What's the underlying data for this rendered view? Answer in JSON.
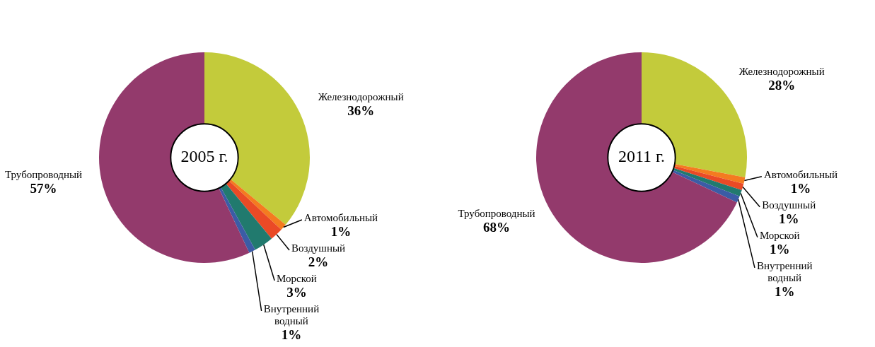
{
  "chart_data": [
    {
      "type": "donut",
      "title": "2005 г.",
      "categories": [
        "Железнодорожный",
        "Автомобильный",
        "Воздушный",
        "Морской",
        "Внутренний водный",
        "Трубопроводный"
      ],
      "values": [
        36,
        1,
        2,
        3,
        1,
        57
      ],
      "colors": [
        "#c3cb3b",
        "#f47b20",
        "#ea4a26",
        "#217a6e",
        "#3b5ca6",
        "#933a6c"
      ],
      "value_labels": [
        "36%",
        "1%",
        "2%",
        "3%",
        "1%",
        "57%"
      ]
    },
    {
      "type": "donut",
      "title": "2011 г.",
      "categories": [
        "Железнодорожный",
        "Автомобильный",
        "Воздушный",
        "Морской",
        "Внутренний водный",
        "Трубопроводный"
      ],
      "values": [
        28,
        1,
        1,
        1,
        1,
        68
      ],
      "colors": [
        "#c3cb3b",
        "#f47b20",
        "#ea4a26",
        "#217a6e",
        "#3b5ca6",
        "#933a6c"
      ],
      "value_labels": [
        "28%",
        "1%",
        "1%",
        "1%",
        "1%",
        "68%"
      ]
    }
  ]
}
